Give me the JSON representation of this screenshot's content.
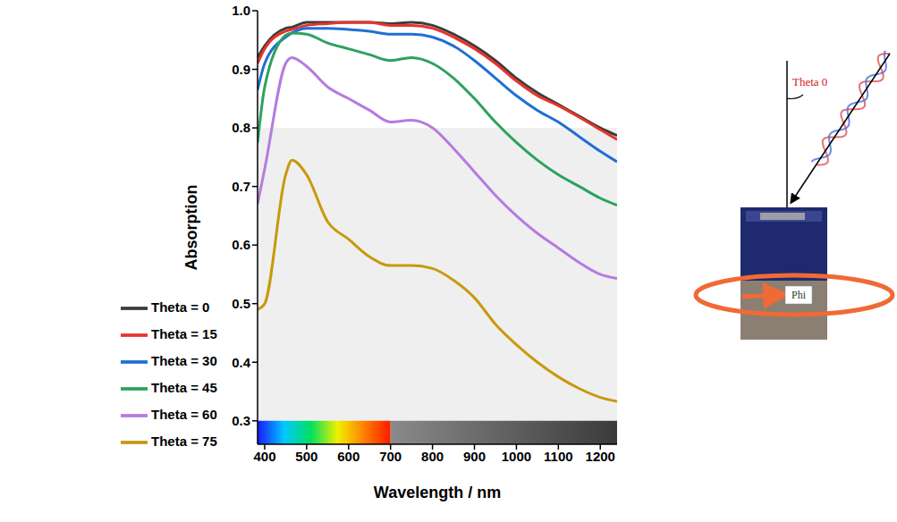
{
  "chart_data": {
    "type": "line",
    "x_label": "Wavelength / nm",
    "y_label": "Absorption",
    "x": [
      383,
      400,
      450,
      465,
      500,
      550,
      600,
      650,
      700,
      750,
      800,
      850,
      900,
      950,
      1000,
      1050,
      1100,
      1150,
      1200,
      1240
    ],
    "series": [
      {
        "name": "Theta = 0",
        "color": "#3c3c3c",
        "values": [
          0.92,
          0.94,
          0.97,
          0.972,
          0.98,
          0.98,
          0.98,
          0.98,
          0.978,
          0.98,
          0.975,
          0.96,
          0.94,
          0.915,
          0.885,
          0.86,
          0.84,
          0.82,
          0.8,
          0.787
        ]
      },
      {
        "name": "Theta = 15",
        "color": "#e8332a",
        "values": [
          0.91,
          0.935,
          0.965,
          0.968,
          0.975,
          0.978,
          0.98,
          0.98,
          0.975,
          0.975,
          0.97,
          0.955,
          0.935,
          0.91,
          0.88,
          0.855,
          0.838,
          0.818,
          0.797,
          0.78
        ]
      },
      {
        "name": "Theta = 30",
        "color": "#1f6fd6",
        "values": [
          0.865,
          0.91,
          0.955,
          0.962,
          0.97,
          0.97,
          0.968,
          0.965,
          0.96,
          0.96,
          0.955,
          0.94,
          0.915,
          0.885,
          0.855,
          0.83,
          0.81,
          0.785,
          0.76,
          0.742
        ]
      },
      {
        "name": "Theta = 45",
        "color": "#2ca25f",
        "values": [
          0.775,
          0.87,
          0.958,
          0.962,
          0.96,
          0.945,
          0.935,
          0.925,
          0.915,
          0.92,
          0.91,
          0.885,
          0.85,
          0.81,
          0.775,
          0.745,
          0.72,
          0.7,
          0.68,
          0.668
        ]
      },
      {
        "name": "Theta = 60",
        "color": "#b57be0",
        "values": [
          0.67,
          0.73,
          0.91,
          0.92,
          0.905,
          0.87,
          0.85,
          0.83,
          0.81,
          0.813,
          0.8,
          0.765,
          0.725,
          0.685,
          0.65,
          0.62,
          0.595,
          0.57,
          0.55,
          0.543
        ]
      },
      {
        "name": "Theta = 75",
        "color": "#c8990e",
        "values": [
          0.49,
          0.5,
          0.72,
          0.745,
          0.72,
          0.64,
          0.61,
          0.58,
          0.565,
          0.565,
          0.56,
          0.54,
          0.51,
          0.465,
          0.43,
          0.4,
          0.375,
          0.355,
          0.34,
          0.333
        ]
      }
    ],
    "xlim": [
      383,
      1240
    ],
    "xticks": [
      400,
      500,
      600,
      700,
      800,
      900,
      1000,
      1100,
      1200
    ],
    "ylim": [
      0.26,
      1.0
    ],
    "yticks": [
      0.3,
      0.4,
      0.5,
      0.6,
      0.7,
      0.8,
      0.9,
      {
        "value": 1.0,
        "label": "1.0"
      }
    ],
    "legend": "lower left",
    "grid": false,
    "shaded_band": [
      0.3,
      0.8
    ],
    "spectrum_bar": {
      "visible": [
        383,
        700
      ],
      "infrared": [
        700,
        1240
      ],
      "y": [
        0.26,
        0.3
      ]
    }
  },
  "diagram": {
    "labels": {
      "theta": "Theta 0",
      "phi": "Phi"
    }
  }
}
